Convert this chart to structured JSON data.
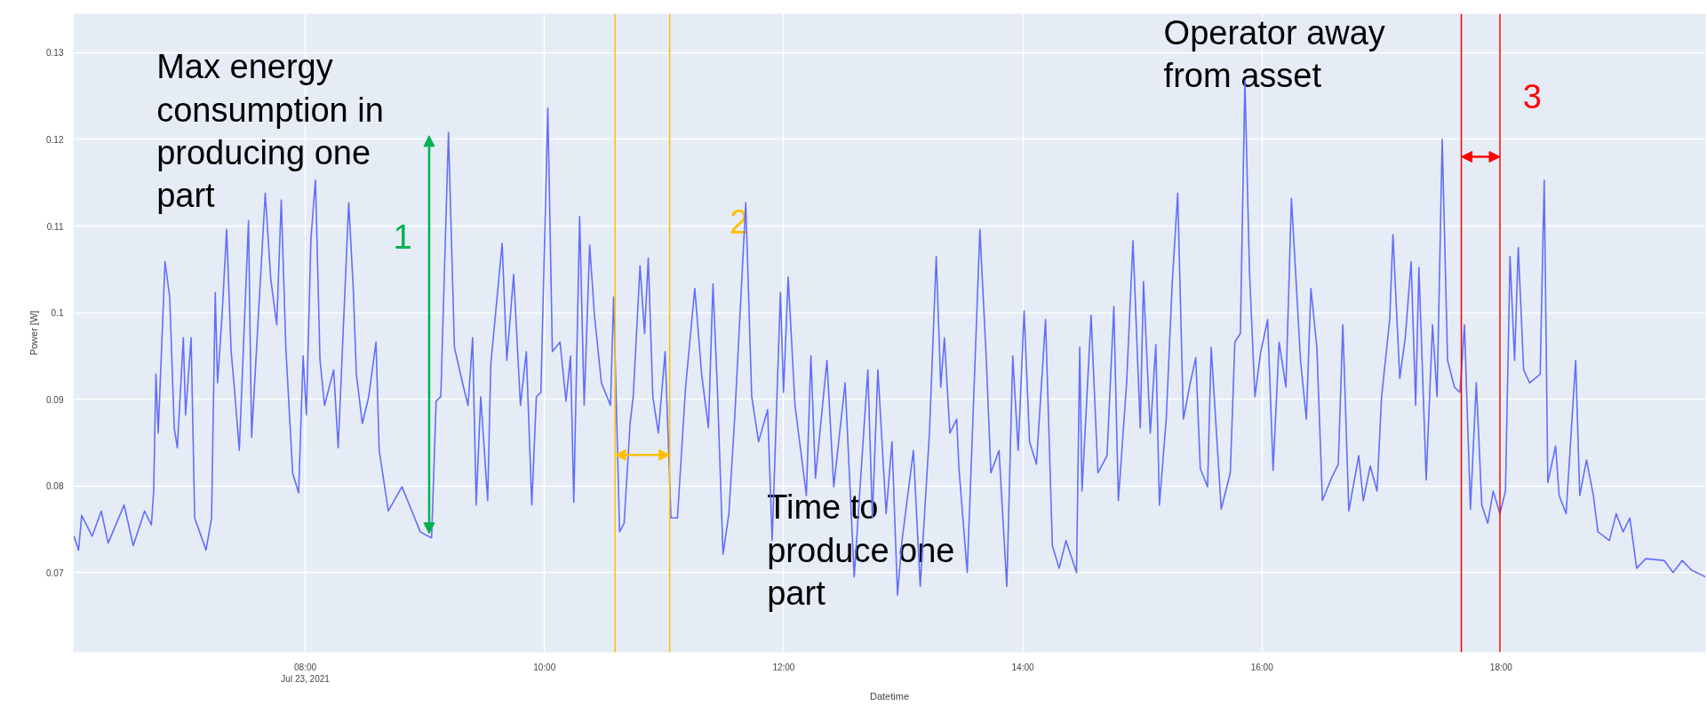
{
  "chart_data": {
    "type": "line",
    "xlabel": "Datetime",
    "ylabel": "Power [W]",
    "xlim": [
      6.06,
      19.71
    ],
    "ylim": [
      0.0608,
      0.1345
    ],
    "xticks": [
      {
        "value": 8,
        "label": "08:00\nJul 23, 2021"
      },
      {
        "value": 10,
        "label": "10:00"
      },
      {
        "value": 12,
        "label": "12:00"
      },
      {
        "value": 14,
        "label": "14:00"
      },
      {
        "value": 16,
        "label": "16:00"
      },
      {
        "value": 18,
        "label": "18:00"
      }
    ],
    "yticks": [
      0.07,
      0.08,
      0.09,
      0.1,
      0.11,
      0.12,
      0.13
    ],
    "grid": true,
    "series": [
      {
        "color": "#636efa",
        "x": [
          6.066,
          6.104,
          6.13,
          6.218,
          6.294,
          6.351,
          6.485,
          6.561,
          6.656,
          6.713,
          6.732,
          6.751,
          6.77,
          6.827,
          6.866,
          6.904,
          6.93,
          6.98,
          6.999,
          7.045,
          7.075,
          7.17,
          7.216,
          7.247,
          7.266,
          7.304,
          7.342,
          7.38,
          7.41,
          7.448,
          7.525,
          7.551,
          7.665,
          7.711,
          7.761,
          7.799,
          7.837,
          7.894,
          7.944,
          7.982,
          8.009,
          8.047,
          8.085,
          8.123,
          8.161,
          8.237,
          8.275,
          8.363,
          8.401,
          8.427,
          8.477,
          8.53,
          8.591,
          8.618,
          8.694,
          8.808,
          8.885,
          8.961,
          9.056,
          9.094,
          9.133,
          9.197,
          9.247,
          9.323,
          9.361,
          9.399,
          9.429,
          9.467,
          9.525,
          9.551,
          9.646,
          9.685,
          9.742,
          9.799,
          9.848,
          9.894,
          9.932,
          9.97,
          10.028,
          10.066,
          10.13,
          10.18,
          10.218,
          10.245,
          10.294,
          10.332,
          10.378,
          10.418,
          10.476,
          10.552,
          10.578,
          10.628,
          10.666,
          10.716,
          10.742,
          10.799,
          10.837,
          10.868,
          10.906,
          10.952,
          11.009,
          11.058,
          11.112,
          11.18,
          11.257,
          11.314,
          11.371,
          11.409,
          11.447,
          11.493,
          11.542,
          11.592,
          11.683,
          11.733,
          11.79,
          11.866,
          11.904,
          11.973,
          11.999,
          12.038,
          12.095,
          12.19,
          12.228,
          12.266,
          12.362,
          12.419,
          12.514,
          12.59,
          12.647,
          12.704,
          12.742,
          12.788,
          12.857,
          12.906,
          12.952,
          12.99,
          13.085,
          13.142,
          13.219,
          13.276,
          13.314,
          13.344,
          13.39,
          13.447,
          13.466,
          13.535,
          13.58,
          13.641,
          13.695,
          13.733,
          13.801,
          13.866,
          13.916,
          13.961,
          14.011,
          14.056,
          14.114,
          14.19,
          14.247,
          14.304,
          14.361,
          14.449,
          14.476,
          14.495,
          14.571,
          14.628,
          14.704,
          14.761,
          14.799,
          14.868,
          14.921,
          14.982,
          15.009,
          15.066,
          15.112,
          15.142,
          15.199,
          15.249,
          15.295,
          15.343,
          15.4,
          15.446,
          15.484,
          15.545,
          15.575,
          15.659,
          15.735,
          15.773,
          15.819,
          15.857,
          15.895,
          15.941,
          15.99,
          16.047,
          16.093,
          16.143,
          16.2,
          16.246,
          16.276,
          16.322,
          16.371,
          16.409,
          16.459,
          16.505,
          16.581,
          16.638,
          16.676,
          16.726,
          16.809,
          16.847,
          16.905,
          16.962,
          17.0,
          17.068,
          17.095,
          17.152,
          17.198,
          17.247,
          17.285,
          17.312,
          17.373,
          17.426,
          17.464,
          17.507,
          17.552,
          17.609,
          17.655,
          17.693,
          17.743,
          17.792,
          17.838,
          17.888,
          17.933,
          17.99,
          18.036,
          18.074,
          18.112,
          18.143,
          18.188,
          18.238,
          18.326,
          18.36,
          18.39,
          18.455,
          18.485,
          18.543,
          18.623,
          18.657,
          18.714,
          18.771,
          18.809,
          18.905,
          18.962,
          19.019,
          19.076,
          19.133,
          19.209,
          19.362,
          19.438,
          19.514,
          19.59,
          19.708
        ],
        "values": [
          0.0742,
          0.0726,
          0.0766,
          0.0742,
          0.0771,
          0.0734,
          0.0778,
          0.0731,
          0.0771,
          0.0755,
          0.0794,
          0.0929,
          0.0861,
          0.1059,
          0.1018,
          0.0867,
          0.0844,
          0.0971,
          0.0882,
          0.0971,
          0.0763,
          0.0726,
          0.0763,
          0.1023,
          0.0919,
          0.0997,
          0.1096,
          0.0955,
          0.0908,
          0.0841,
          0.1106,
          0.0856,
          0.1138,
          0.1039,
          0.0986,
          0.113,
          0.096,
          0.0815,
          0.0792,
          0.095,
          0.0882,
          0.1085,
          0.1153,
          0.0945,
          0.0893,
          0.0934,
          0.0844,
          0.1127,
          0.1028,
          0.0929,
          0.0872,
          0.0903,
          0.0966,
          0.0841,
          0.0771,
          0.0799,
          0.0773,
          0.0747,
          0.074,
          0.0898,
          0.0903,
          0.1208,
          0.096,
          0.0914,
          0.0893,
          0.0971,
          0.0778,
          0.0903,
          0.0783,
          0.094,
          0.108,
          0.0945,
          0.1044,
          0.0893,
          0.0955,
          0.0778,
          0.0903,
          0.0908,
          0.1236,
          0.0955,
          0.0966,
          0.0898,
          0.095,
          0.0781,
          0.1111,
          0.0893,
          0.1078,
          0.0997,
          0.0919,
          0.0893,
          0.1018,
          0.0747,
          0.0757,
          0.0872,
          0.0903,
          0.1054,
          0.0976,
          0.1063,
          0.0903,
          0.0861,
          0.0955,
          0.0763,
          0.0763,
          0.0914,
          0.1028,
          0.0929,
          0.0867,
          0.1033,
          0.0908,
          0.0721,
          0.0768,
          0.0882,
          0.1127,
          0.0903,
          0.0851,
          0.0888,
          0.0737,
          0.1023,
          0.0908,
          0.1041,
          0.0893,
          0.0789,
          0.095,
          0.0809,
          0.0945,
          0.0799,
          0.0919,
          0.0695,
          0.0815,
          0.0934,
          0.0763,
          0.0934,
          0.0768,
          0.0851,
          0.0674,
          0.0737,
          0.0841,
          0.0684,
          0.0861,
          0.1065,
          0.0914,
          0.0971,
          0.0861,
          0.0877,
          0.082,
          0.07,
          0.0867,
          0.1096,
          0.0945,
          0.0815,
          0.0841,
          0.0684,
          0.095,
          0.0841,
          0.1002,
          0.0851,
          0.0825,
          0.0992,
          0.0731,
          0.0705,
          0.0737,
          0.07,
          0.096,
          0.0794,
          0.0997,
          0.0815,
          0.0835,
          0.1007,
          0.0783,
          0.0919,
          0.1083,
          0.0867,
          0.1036,
          0.0861,
          0.0963,
          0.0778,
          0.0877,
          0.1033,
          0.1138,
          0.0877,
          0.0919,
          0.0948,
          0.082,
          0.0799,
          0.096,
          0.0773,
          0.0815,
          0.0966,
          0.0976,
          0.1268,
          0.1049,
          0.0903,
          0.0955,
          0.0992,
          0.0818,
          0.0966,
          0.0914,
          0.1132,
          0.1059,
          0.0945,
          0.0877,
          0.1028,
          0.096,
          0.0783,
          0.0809,
          0.0825,
          0.0986,
          0.0771,
          0.0835,
          0.0783,
          0.0823,
          0.0794,
          0.0903,
          0.0992,
          0.109,
          0.0924,
          0.0971,
          0.1059,
          0.0893,
          0.1052,
          0.0807,
          0.0986,
          0.0903,
          0.12,
          0.0945,
          0.0914,
          0.0908,
          0.0986,
          0.0773,
          0.0919,
          0.0778,
          0.0757,
          0.0794,
          0.0768,
          0.0794,
          0.1065,
          0.0945,
          0.1075,
          0.0934,
          0.0919,
          0.0929,
          0.1153,
          0.0804,
          0.0846,
          0.0789,
          0.0768,
          0.0945,
          0.0789,
          0.083,
          0.0789,
          0.0747,
          0.0737,
          0.0768,
          0.0747,
          0.0763,
          0.0705,
          0.0716,
          0.0714,
          0.07,
          0.0714,
          0.0703,
          0.0695
        ]
      }
    ],
    "ref_lines": [
      {
        "axis": "x",
        "value": 10.59,
        "label": null,
        "color": "#ffc000"
      },
      {
        "axis": "x",
        "value": 11.047,
        "label": null,
        "color": "#ffc000"
      },
      {
        "axis": "x",
        "value": 17.667,
        "label": null,
        "color": "#ff0000"
      },
      {
        "axis": "x",
        "value": 17.99,
        "label": null,
        "color": "#ff0000"
      }
    ],
    "annotations": [
      "Max energy consumption in producing one part",
      "1",
      "2",
      "Time to produce one part",
      "Operator away from asset",
      "3"
    ]
  }
}
